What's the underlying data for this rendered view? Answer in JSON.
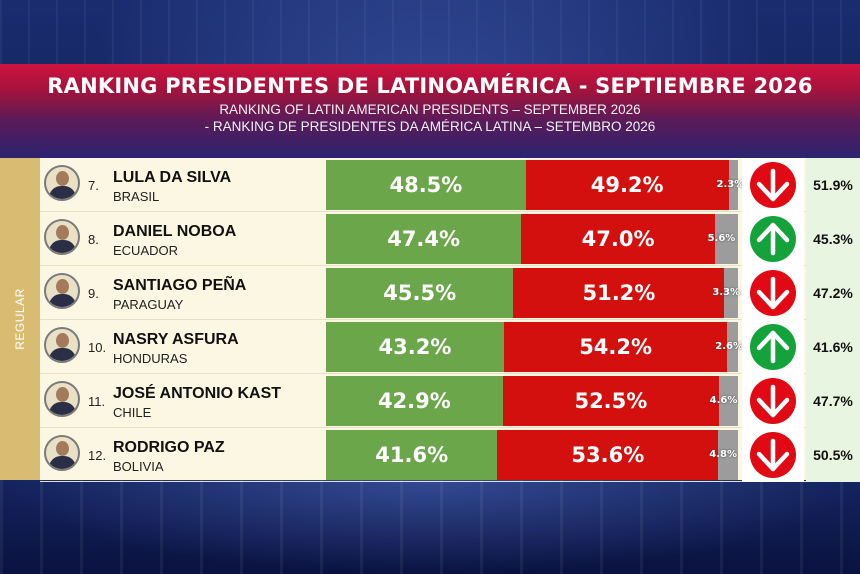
{
  "header": {
    "title": "RANKING PRESIDENTES DE LATINOAMÉRICA - SEPTIEMBRE 2026",
    "subtitle_en": "RANKING OF LATIN AMERICAN PRESIDENTS – SEPTEMBER 2026",
    "subtitle_pt": "- RANKING DE PRESIDENTES DA AMÉRICA LATINA – SETEMBRO 2026"
  },
  "category_label": "REGULAR",
  "colors": {
    "approve": "#6ca64b",
    "disapprove": "#d4100e",
    "other": "#9c9c9c",
    "trend_up": "#14a33a",
    "trend_down": "#e10a14"
  },
  "rows": [
    {
      "rank": "7.",
      "name": "LULA DA SILVA",
      "country": "BRASIL",
      "approve": 48.5,
      "approve_label": "48.5%",
      "disapprove": 49.2,
      "disapprove_label": "49.2%",
      "other": 2.3,
      "other_label": "2.3%",
      "trend": "down",
      "trend_icon": "arrow-down-icon",
      "previous": "51.9%"
    },
    {
      "rank": "8.",
      "name": "DANIEL NOBOA",
      "country": "ECUADOR",
      "approve": 47.4,
      "approve_label": "47.4%",
      "disapprove": 47.0,
      "disapprove_label": "47.0%",
      "other": 5.6,
      "other_label": "5.6%",
      "trend": "up",
      "trend_icon": "arrow-up-icon",
      "previous": "45.3%"
    },
    {
      "rank": "9.",
      "name": "SANTIAGO PEÑA",
      "country": "PARAGUAY",
      "approve": 45.5,
      "approve_label": "45.5%",
      "disapprove": 51.2,
      "disapprove_label": "51.2%",
      "other": 3.3,
      "other_label": "3.3%",
      "trend": "down",
      "trend_icon": "arrow-down-icon",
      "previous": "47.2%"
    },
    {
      "rank": "10.",
      "name": "NASRY ASFURA",
      "country": "HONDURAS",
      "approve": 43.2,
      "approve_label": "43.2%",
      "disapprove": 54.2,
      "disapprove_label": "54.2%",
      "other": 2.6,
      "other_label": "2.6%",
      "trend": "up",
      "trend_icon": "arrow-up-icon",
      "previous": "41.6%"
    },
    {
      "rank": "11.",
      "name": "JOSÉ ANTONIO KAST",
      "country": "CHILE",
      "approve": 42.9,
      "approve_label": "42.9%",
      "disapprove": 52.5,
      "disapprove_label": "52.5%",
      "other": 4.6,
      "other_label": "4.6%",
      "trend": "down",
      "trend_icon": "arrow-down-icon",
      "previous": "47.7%"
    },
    {
      "rank": "12.",
      "name": "RODRIGO PAZ",
      "country": "BOLIVIA",
      "approve": 41.6,
      "approve_label": "41.6%",
      "disapprove": 53.6,
      "disapprove_label": "53.6%",
      "other": 4.8,
      "other_label": "4.8%",
      "trend": "down",
      "trend_icon": "arrow-down-icon",
      "previous": "50.5%"
    }
  ]
}
